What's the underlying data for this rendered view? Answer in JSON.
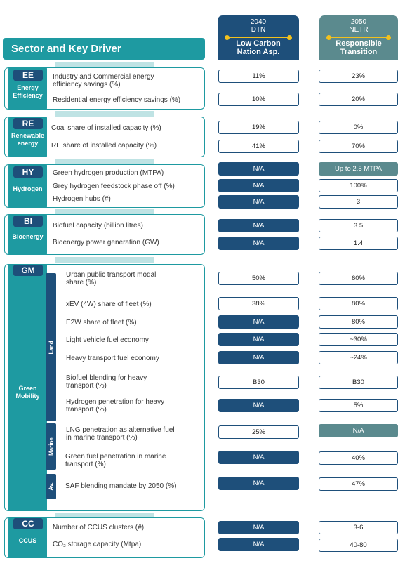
{
  "columns": {
    "a": {
      "year": "2040",
      "scenario": "DTN",
      "name_l1": "Low Carbon",
      "name_l2": "Nation Asp."
    },
    "b": {
      "year": "2050",
      "scenario": "NETR",
      "name_l1": "Responsible",
      "name_l2": "Transition"
    }
  },
  "title": "Sector and Key Driver",
  "colors": {
    "teal": "#1e9aa1",
    "navy": "#1e4f7a",
    "slate": "#5b8a8e",
    "gold": "#f2c11e",
    "pale": "#bfe3e4"
  },
  "sections": {
    "ee": {
      "code": "EE",
      "name_l1": "Energy",
      "name_l2": "Efficiency",
      "rows": [
        {
          "l1": "Industry and Commercial energy",
          "l2": "efficiency savings (%)",
          "a": "11%",
          "b": "23%"
        },
        {
          "l1": "Residential energy efficiency savings (%)",
          "a": "10%",
          "b": "20%"
        }
      ]
    },
    "re": {
      "code": "RE",
      "name_l1": "Renewable",
      "name_l2": "energy",
      "rows": [
        {
          "l1": "Coal share of installed capacity (%)",
          "a": "19%",
          "b": "0%"
        },
        {
          "l1": "RE share of installed capacity (%)",
          "a": "41%",
          "b": "70%"
        }
      ]
    },
    "hy": {
      "code": "HY",
      "name_l1": "Hydrogen",
      "rows": [
        {
          "l1": "Green hydrogen production (MTPA)",
          "a": "N/A",
          "b": "Up to 2.5 MTPA"
        },
        {
          "l1": "Grey hydrogen feedstock phase off (%)",
          "a": "N/A",
          "b": "100%"
        },
        {
          "l1": "Hydrogen hubs (#)",
          "a": "N/A",
          "b": "3"
        }
      ]
    },
    "bi": {
      "code": "BI",
      "name_l1": "Bioenergy",
      "rows": [
        {
          "l1": "Biofuel capacity (billion litres)",
          "a": "N/A",
          "b": "3.5"
        },
        {
          "l1": "Bioenergy power generation (GW)",
          "a": "N/A",
          "b": "1.4"
        }
      ]
    },
    "gm": {
      "code": "GM",
      "name_l1": "Green",
      "name_l2": "Mobility",
      "tabs": {
        "land": "Land",
        "marine": "Marine",
        "av": "Av."
      },
      "rows": [
        {
          "l1": "Urban public transport modal",
          "l2": "share (%)",
          "a": "50%",
          "b": "60%"
        },
        {
          "l1": "xEV (4W) share of fleet (%)",
          "a": "38%",
          "b": "80%"
        },
        {
          "l1": "E2W share of fleet (%)",
          "a": "N/A",
          "b": "80%"
        },
        {
          "l1": "Light vehicle fuel economy",
          "a": "N/A",
          "b": "~30%"
        },
        {
          "l1": "Heavy transport fuel economy",
          "a": "N/A",
          "b": "~24%"
        },
        {
          "l1": "Biofuel blending for heavy",
          "l2": "transport (%)",
          "a": "B30",
          "b": "B30"
        },
        {
          "l1": "Hydrogen penetration for heavy",
          "l2": "transport (%)",
          "a": "N/A",
          "b": "5%"
        },
        {
          "l1": "LNG penetration as alternative fuel",
          "l2": "in marine transport (%)",
          "a": "25%",
          "b": "N/A"
        },
        {
          "l1": "Green fuel penetration in marine",
          "l2": "transport (%)",
          "a": "N/A",
          "b": "40%"
        },
        {
          "l1": "SAF blending mandate by 2050 (%)",
          "a": "N/A",
          "b": "47%"
        }
      ]
    },
    "cc": {
      "code": "CC",
      "name_l1": "CCUS",
      "rows": [
        {
          "l1": "Number of CCUS clusters (#)",
          "a": "N/A",
          "b": "3-6"
        },
        {
          "l1": "CO₂ storage capacity (Mtpa)",
          "a": "N/A",
          "b": "40-80"
        }
      ]
    }
  }
}
